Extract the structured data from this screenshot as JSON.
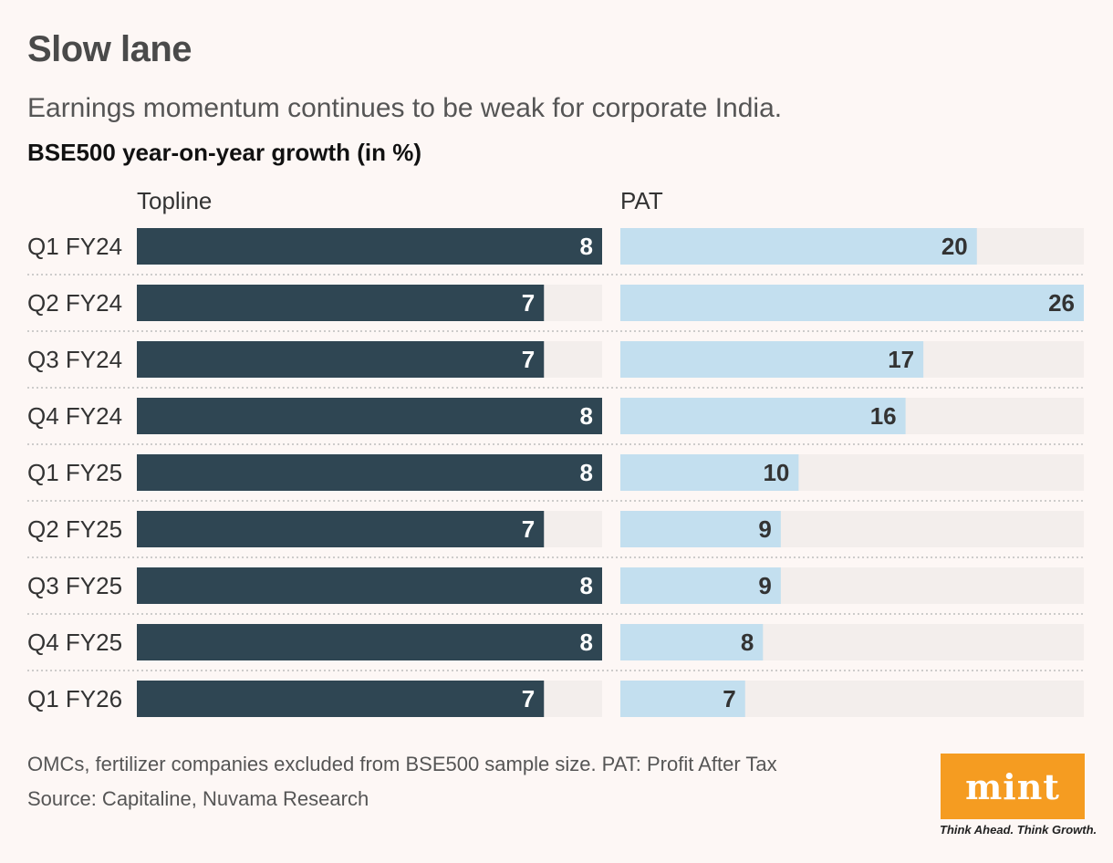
{
  "header": {
    "title": "Slow lane",
    "subtitle": "Earnings momentum continues to be weak for corporate India.",
    "chart_label": "BSE500 year-on-year growth (in %)"
  },
  "chart_data": {
    "type": "bar",
    "orientation": "horizontal",
    "categories": [
      "Q1 FY24",
      "Q2 FY24",
      "Q3 FY24",
      "Q4 FY24",
      "Q1 FY25",
      "Q2 FY25",
      "Q3 FY25",
      "Q4 FY25",
      "Q1 FY26"
    ],
    "panels": [
      {
        "name": "Topline",
        "color": "#2f4653",
        "track_color": "#f3eeec",
        "label_color": "#ffffff",
        "values": [
          8,
          7,
          7,
          8,
          8,
          7,
          8,
          8,
          7
        ],
        "xlim": [
          0,
          8
        ]
      },
      {
        "name": "PAT",
        "color": "#c3dfef",
        "track_color": "#f3eeec",
        "label_color": "#333333",
        "values": [
          20,
          26,
          17,
          16,
          10,
          9,
          9,
          8,
          7
        ],
        "xlim": [
          0,
          26
        ]
      }
    ],
    "legend": "none",
    "grid": false
  },
  "footer": {
    "note": "OMCs, fertilizer companies excluded from BSE500 sample size. PAT: Profit After Tax",
    "source": "Source: Capitaline, Nuvama Research"
  },
  "logo": {
    "text": "mint",
    "tagline": "Think Ahead. Think Growth.",
    "color": "#f59c21"
  }
}
